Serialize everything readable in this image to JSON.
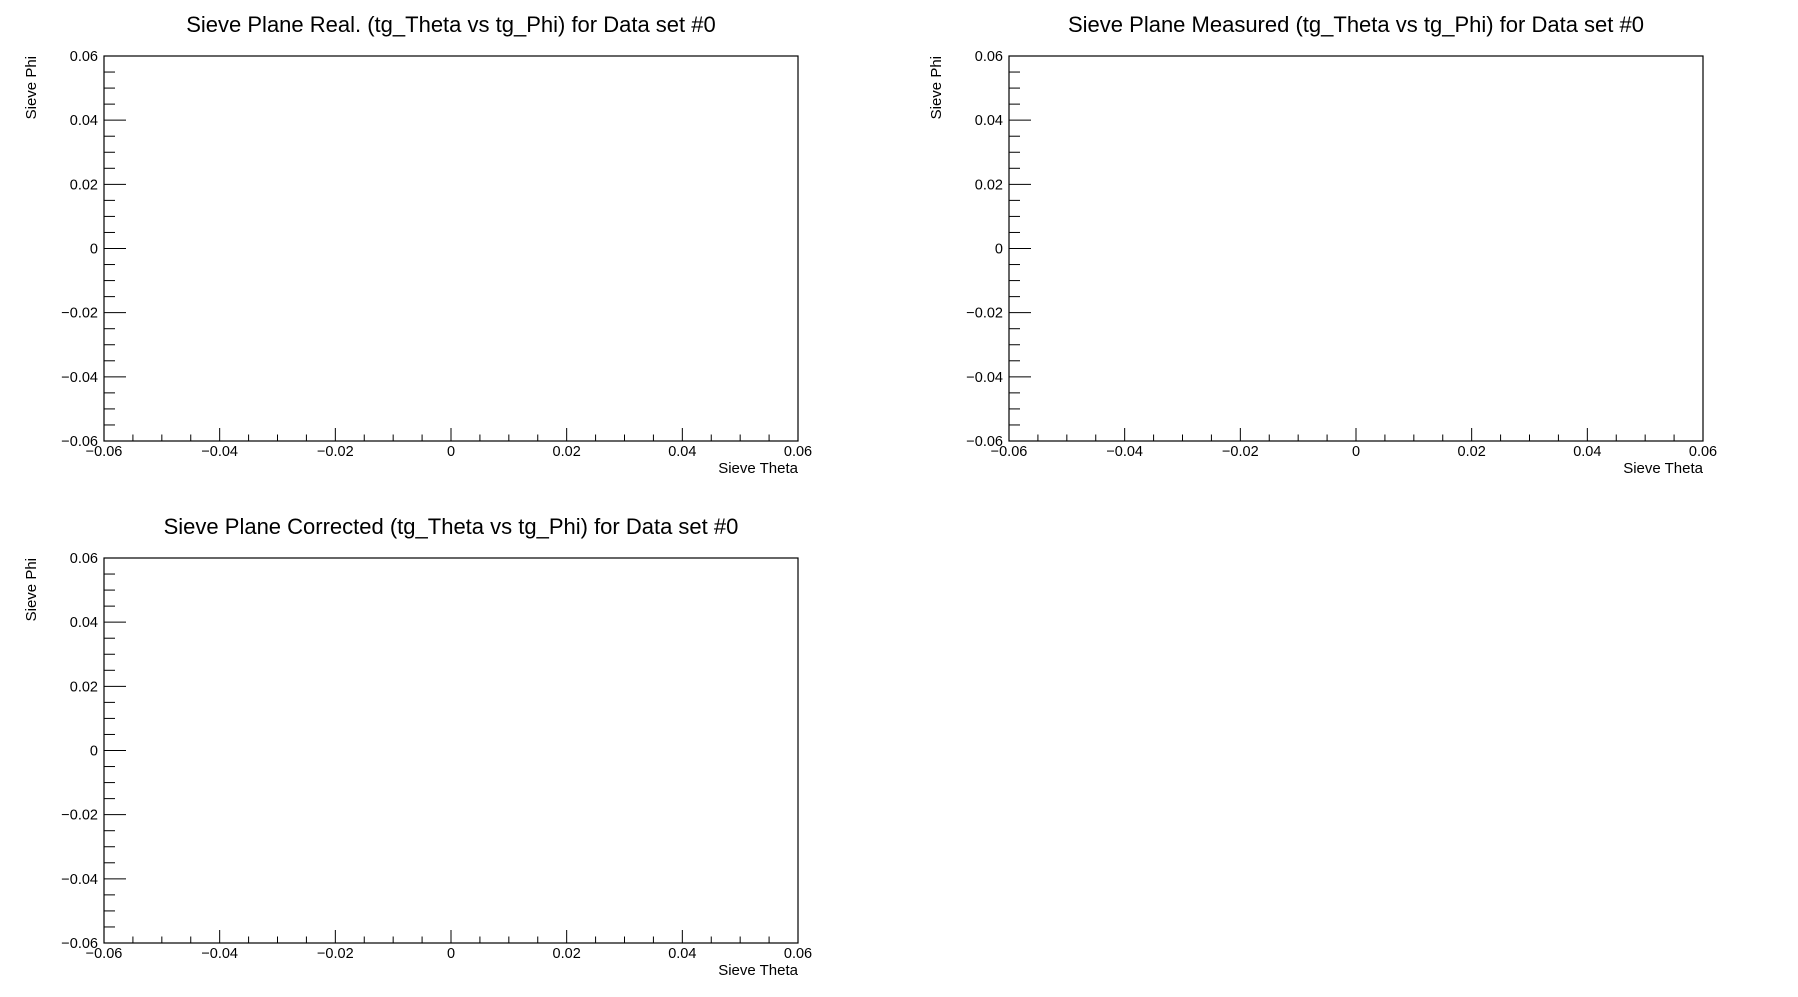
{
  "chart_data": [
    {
      "type": "scatter",
      "title": "Sieve Plane Real. (tg_Theta vs tg_Phi) for Data set #0",
      "xlabel": "Sieve Theta",
      "ylabel": "Sieve Phi",
      "xlim": [
        -0.06,
        0.06
      ],
      "ylim": [
        -0.06,
        0.06
      ],
      "x_ticks": [
        "−0.06",
        "−0.04",
        "−0.02",
        "0",
        "0.02",
        "0.04",
        "0.06"
      ],
      "y_ticks": [
        "−0.06",
        "−0.04",
        "−0.02",
        "0",
        "0.02",
        "0.04",
        "0.06"
      ],
      "grid": false,
      "points": []
    },
    {
      "type": "scatter",
      "title": "Sieve Plane Measured (tg_Theta vs tg_Phi) for Data set #0",
      "xlabel": "Sieve Theta",
      "ylabel": "Sieve Phi",
      "xlim": [
        -0.06,
        0.06
      ],
      "ylim": [
        -0.06,
        0.06
      ],
      "x_ticks": [
        "−0.06",
        "−0.04",
        "−0.02",
        "0",
        "0.02",
        "0.04",
        "0.06"
      ],
      "y_ticks": [
        "−0.06",
        "−0.04",
        "−0.02",
        "0",
        "0.02",
        "0.04",
        "0.06"
      ],
      "grid": false,
      "points": []
    },
    {
      "type": "scatter",
      "title": "Sieve Plane Corrected (tg_Theta vs tg_Phi) for Data set #0",
      "xlabel": "Sieve Theta",
      "ylabel": "Sieve Phi",
      "xlim": [
        -0.06,
        0.06
      ],
      "ylim": [
        -0.06,
        0.06
      ],
      "x_ticks": [
        "−0.06",
        "−0.04",
        "−0.02",
        "0",
        "0.02",
        "0.04",
        "0.06"
      ],
      "y_ticks": [
        "−0.06",
        "−0.04",
        "−0.02",
        "0",
        "0.02",
        "0.04",
        "0.06"
      ],
      "grid": false,
      "points": []
    }
  ],
  "colors": {
    "axis": "#000000",
    "background": "#ffffff"
  }
}
